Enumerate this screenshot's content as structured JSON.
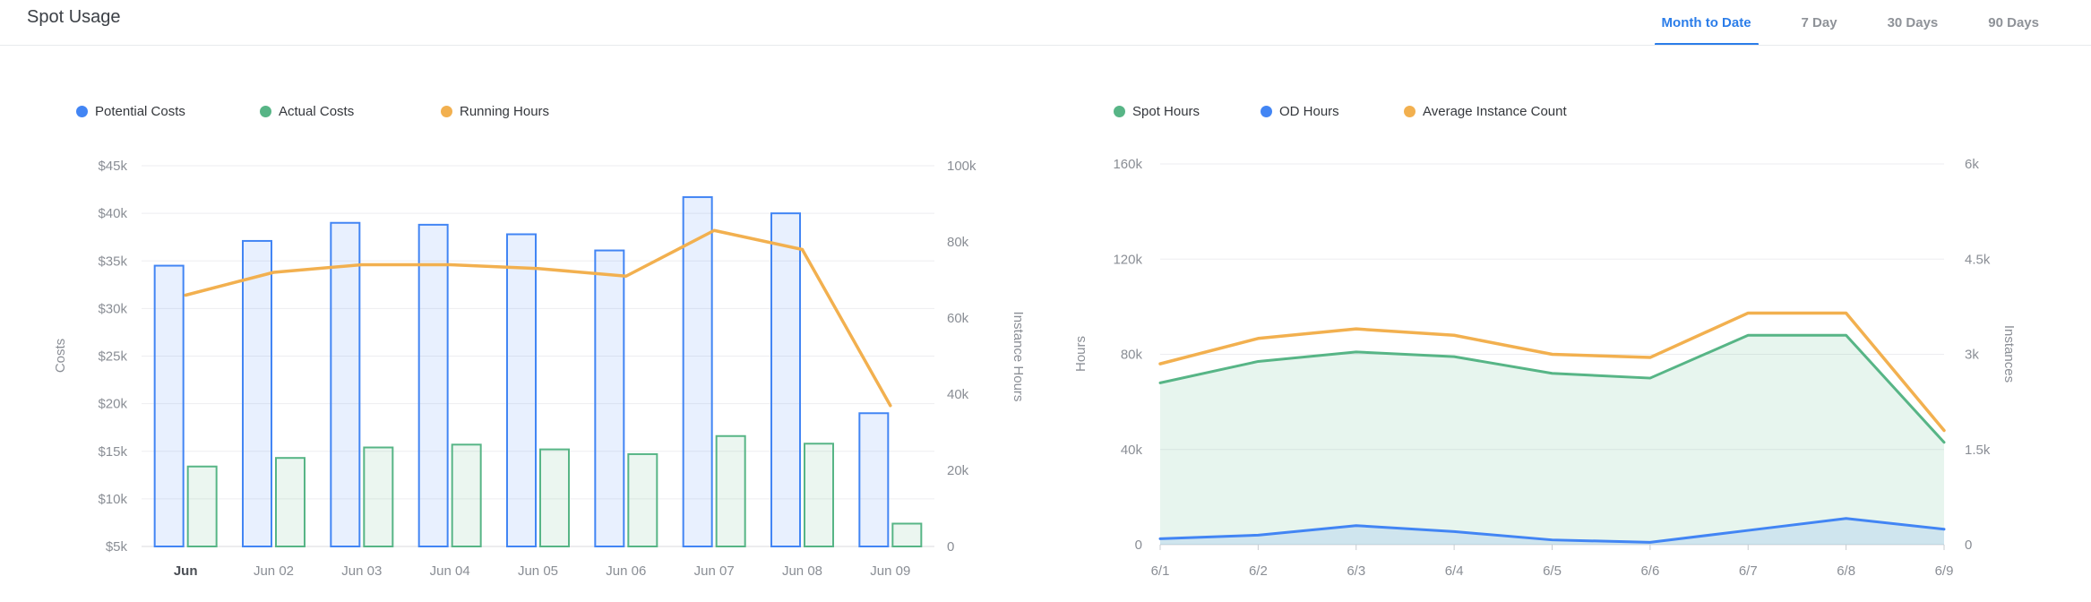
{
  "header": {
    "title": "Spot Usage"
  },
  "tabs": [
    {
      "label": "Month to Date",
      "active": true
    },
    {
      "label": "7 Day",
      "active": false
    },
    {
      "label": "30 Days",
      "active": false
    },
    {
      "label": "90 Days",
      "active": false
    }
  ],
  "colors": {
    "accent_blue": "#2b7de9",
    "series_blue": "#4285f4",
    "series_green": "#57b586",
    "series_orange": "#f2b04f",
    "divider": "#e8eaed",
    "gridline": "#ededf0",
    "axis_text": "#8a8e95"
  },
  "chart_data": [
    {
      "type": "bar",
      "title": "Spot Usage - Costs",
      "categories": [
        "Jun",
        "Jun 02",
        "Jun 03",
        "Jun 04",
        "Jun 05",
        "Jun 06",
        "Jun 07",
        "Jun 08",
        "Jun 09"
      ],
      "left_axis": {
        "label": "Costs",
        "min": 5000,
        "max": 45000,
        "ticks": [
          "$45k",
          "$40k",
          "$35k",
          "$30k",
          "$25k",
          "$20k",
          "$15k",
          "$10k",
          "$5k"
        ]
      },
      "right_axis": {
        "label": "Instance Hours",
        "min": 0,
        "max": 100000,
        "ticks": [
          "100k",
          "80k",
          "60k",
          "40k",
          "20k",
          "0"
        ]
      },
      "grid": true,
      "legend_position": "top",
      "series": [
        {
          "name": "Potential Costs",
          "type": "bar",
          "axis": "left",
          "color": "#4285f4",
          "fill": "rgba(66,133,244,0.12)",
          "values": [
            34500,
            37100,
            39000,
            38800,
            37800,
            36100,
            41700,
            40000,
            19000
          ]
        },
        {
          "name": "Actual Costs",
          "type": "bar",
          "axis": "left",
          "color": "#57b586",
          "fill": "rgba(87,181,134,0.12)",
          "values": [
            13400,
            14300,
            15400,
            15700,
            15200,
            14700,
            16600,
            15800,
            7400
          ]
        },
        {
          "name": "Running Hours",
          "type": "line",
          "axis": "right",
          "color": "#f2b04f",
          "values": [
            66000,
            72000,
            74000,
            74000,
            73000,
            71000,
            83000,
            78000,
            37000
          ]
        }
      ]
    },
    {
      "type": "area",
      "title": "Spot Usage - Hours and Instances",
      "categories": [
        "6/1",
        "6/2",
        "6/3",
        "6/4",
        "6/5",
        "6/6",
        "6/7",
        "6/8",
        "6/9"
      ],
      "left_axis": {
        "label": "Hours",
        "min": 0,
        "max": 160000,
        "ticks": [
          "160k",
          "120k",
          "80k",
          "40k",
          "0"
        ]
      },
      "right_axis": {
        "label": "Instances",
        "min": 0,
        "max": 6000,
        "ticks": [
          "6k",
          "4.5k",
          "3k",
          "1.5k",
          "0"
        ]
      },
      "grid": true,
      "legend_position": "top",
      "series": [
        {
          "name": "Spot Hours",
          "type": "area",
          "axis": "left",
          "color": "#57b586",
          "fill": "rgba(87,181,134,0.14)",
          "values": [
            68000,
            77000,
            81000,
            79000,
            72000,
            70000,
            88000,
            88000,
            43000
          ]
        },
        {
          "name": "OD Hours",
          "type": "area",
          "axis": "left",
          "color": "#4285f4",
          "fill": "rgba(66,133,244,0.14)",
          "values": [
            2500,
            4000,
            8000,
            5500,
            2000,
            1000,
            6000,
            11000,
            6500
          ]
        },
        {
          "name": "Average Instance Count",
          "type": "line",
          "axis": "right",
          "color": "#f2b04f",
          "values": [
            2850,
            3250,
            3400,
            3300,
            3000,
            2950,
            3650,
            3650,
            1800
          ]
        }
      ]
    }
  ]
}
